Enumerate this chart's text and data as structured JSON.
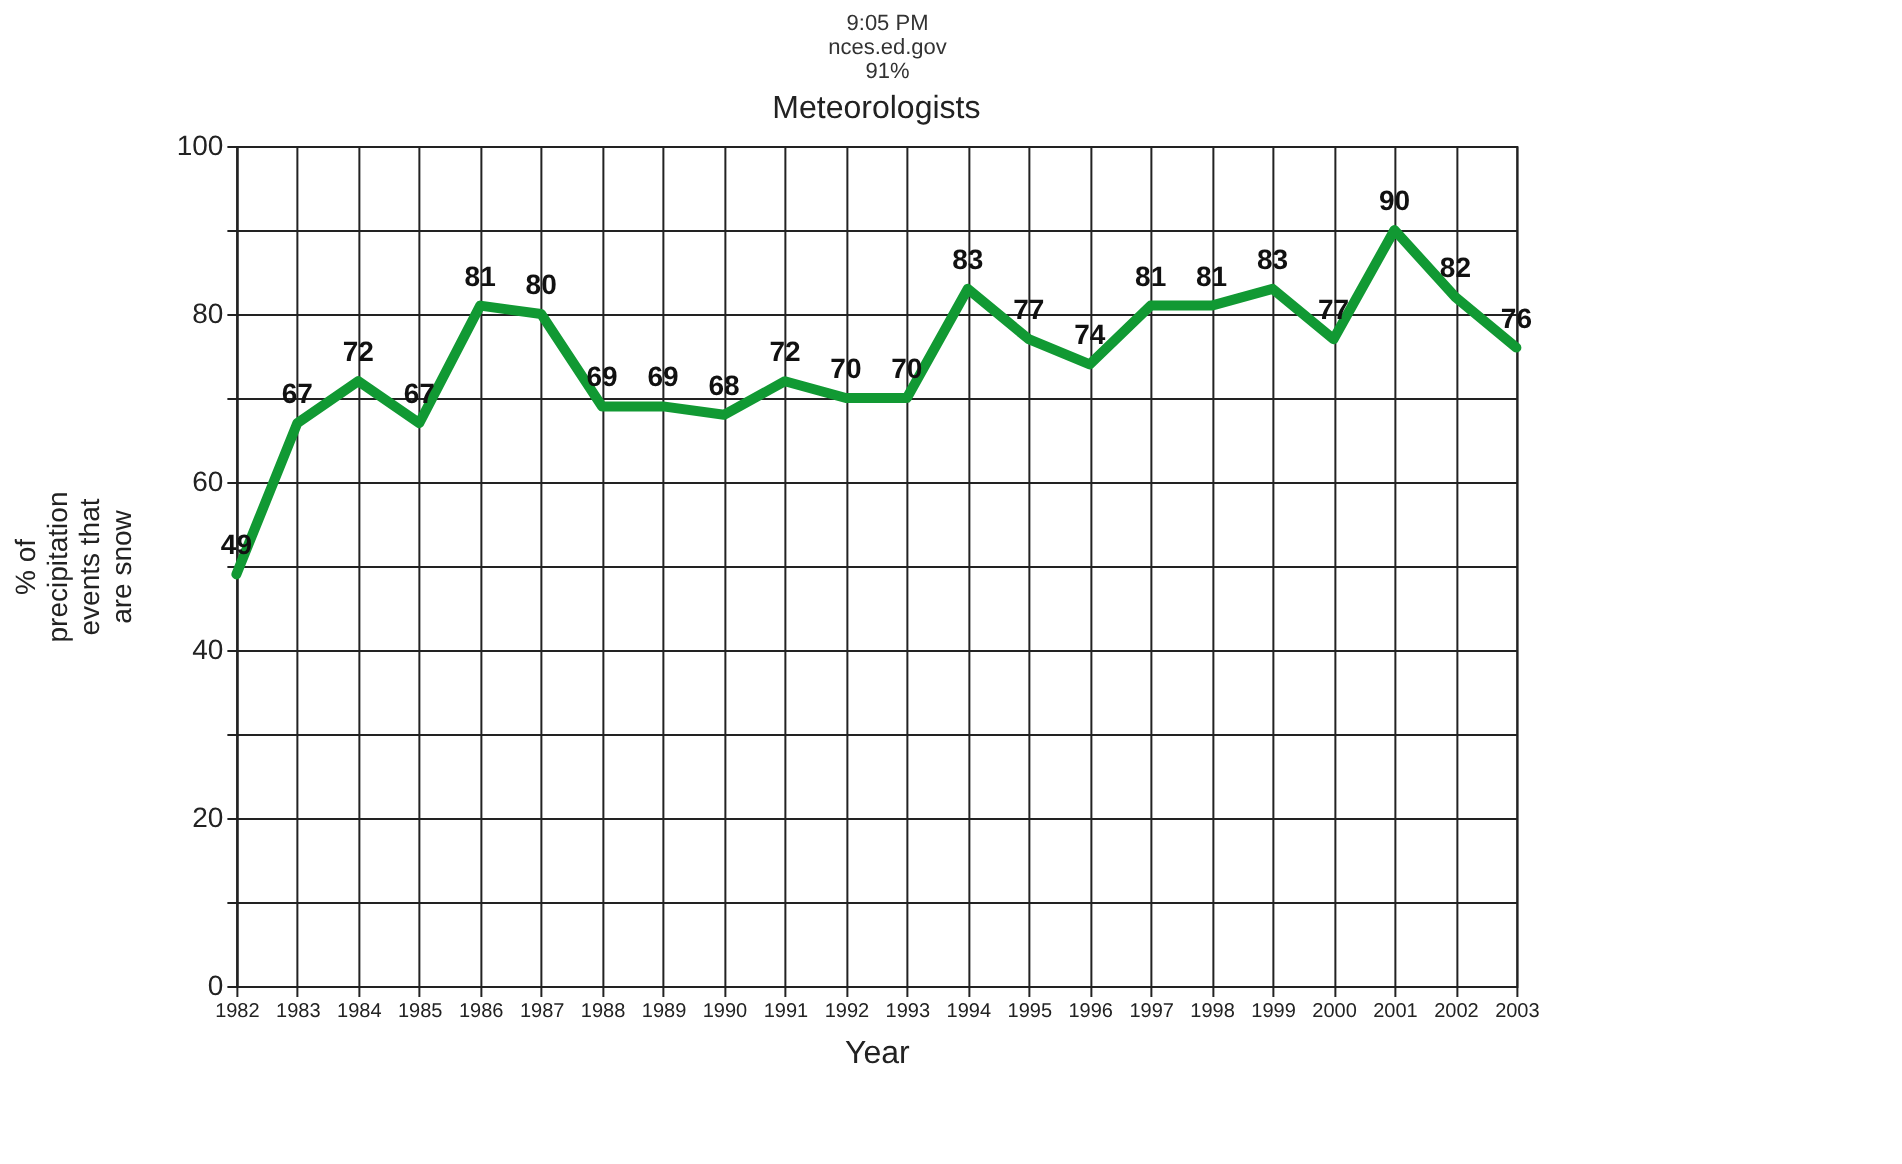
{
  "chart_data": {
    "type": "line",
    "title": "Meteorologists",
    "xlabel": "Year",
    "ylabel": "% of precipitation events that are snow",
    "x": [
      1982,
      1983,
      1984,
      1985,
      1986,
      1987,
      1988,
      1989,
      1990,
      1991,
      1992,
      1993,
      1994,
      1995,
      1996,
      1997,
      1998,
      1999,
      2000,
      2001,
      2002,
      2003
    ],
    "series": [
      {
        "color": "#119933",
        "values": [
          49,
          67,
          72,
          67,
          81,
          80,
          69,
          69,
          68,
          72,
          70,
          70,
          83,
          77,
          74,
          81,
          81,
          83,
          77,
          90,
          82,
          76
        ]
      }
    ],
    "xlim": [
      1982,
      2003
    ],
    "xticks": [
      1982,
      1983,
      1984,
      1985,
      1986,
      1987,
      1988,
      1989,
      1990,
      1991,
      1992,
      1993,
      1994,
      1995,
      1996,
      1997,
      1998,
      1999,
      2000,
      2001,
      2002,
      2003
    ],
    "ylim": [
      0,
      100
    ],
    "yticks": [
      0,
      {
        "value": 10,
        "label": null
      },
      20,
      {
        "value": 30,
        "label": null
      },
      40,
      {
        "value": 50,
        "label": null
      },
      60,
      {
        "value": 70,
        "label": null
      },
      80,
      {
        "value": 90,
        "label": null
      },
      100
    ],
    "grid": true,
    "data_labels": true,
    "marker": "none",
    "line_style": "solid",
    "legend": false,
    "annotations": [
      "9:05 PM",
      "nces.ed.gov",
      "91%"
    ]
  }
}
